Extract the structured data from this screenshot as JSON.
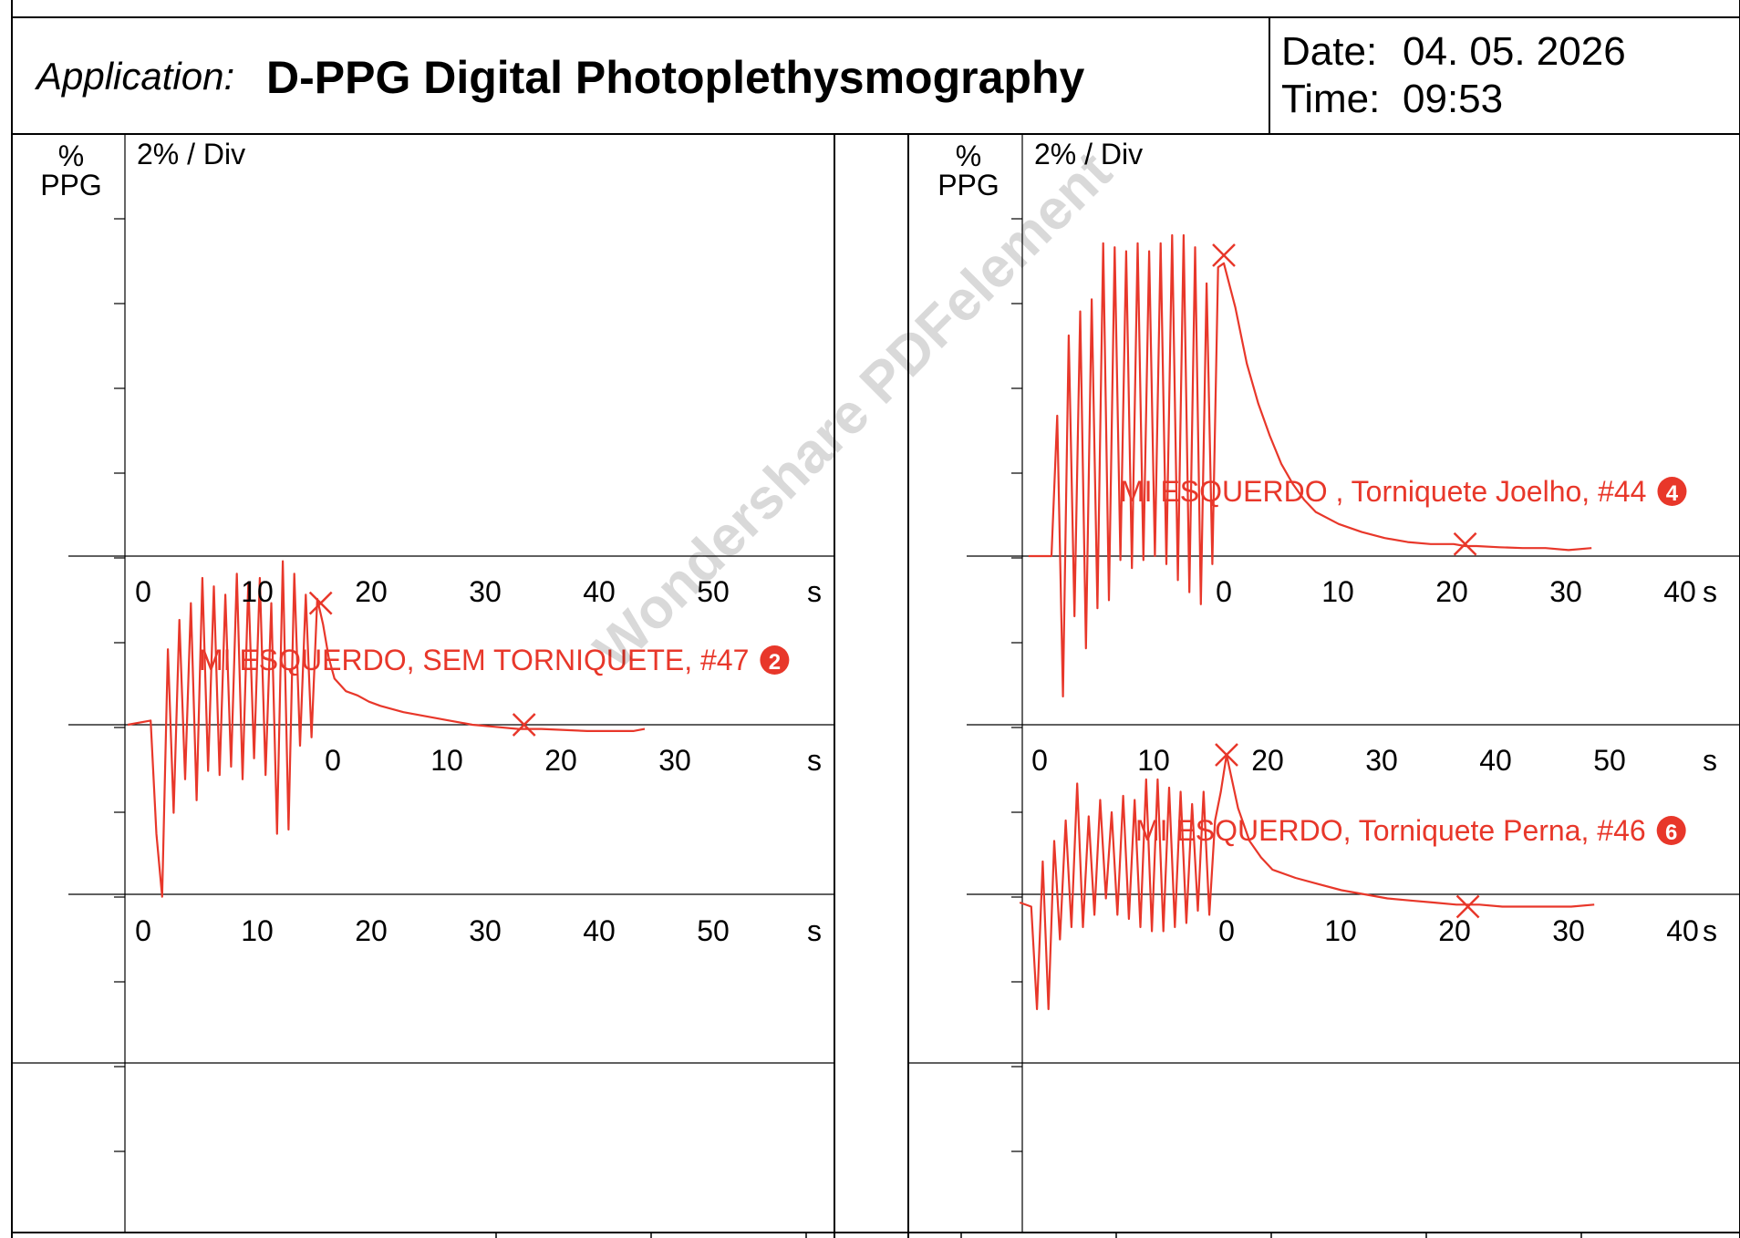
{
  "header": {
    "application_label": "Application:",
    "application_name": "D-PPG Digital Photoplethysmography",
    "date_label": "Date:",
    "date_value": "04. 05. 2026",
    "time_label": "Time:",
    "time_value": "09:53"
  },
  "watermark": "Wondershare PDFelement",
  "colors": {
    "trace": "#e8372a",
    "grid": "#000000"
  },
  "panels": {
    "left": {
      "y_unit_top": "%",
      "y_unit_bottom": "PPG",
      "scale_label": "2% / Div"
    },
    "right": {
      "y_unit_top": "%",
      "y_unit_bottom": "PPG",
      "scale_label": "2% / Div"
    }
  },
  "chart_data": [
    {
      "type": "line",
      "panel": "left",
      "label": "MI ESQUERDO, SEM TORNIQUETE, #47",
      "badge": "2",
      "x_unit": "s",
      "axis_row_ticks": [
        [
          "0",
          "10",
          "20",
          "30",
          "40",
          "50"
        ],
        [
          "0",
          "10",
          "20",
          "30",
          "40",
          "50"
        ]
      ],
      "secondary_axis_ticks": [
        "0",
        "10",
        "20",
        "30"
      ],
      "x": [
        0,
        2,
        2.5,
        3,
        3.5,
        4,
        4.5,
        5,
        5.5,
        6,
        6.5,
        7,
        7.5,
        8,
        8.5,
        9,
        9.5,
        10,
        10.5,
        11,
        11.5,
        12,
        12.5,
        13,
        13.5,
        14,
        14.5,
        15,
        15.5,
        16,
        16.5,
        17,
        17.5,
        18,
        19,
        20,
        21,
        22,
        24,
        26,
        28,
        30,
        32,
        34,
        36,
        40,
        44,
        45
      ],
      "y": [
        0,
        0.1,
        -2.6,
        -4.1,
        1.8,
        -2.1,
        2.5,
        -1.3,
        2.9,
        -1.8,
        3.5,
        -1.1,
        3.3,
        -1.2,
        3.1,
        -1.0,
        3.6,
        -1.3,
        3.4,
        -0.8,
        3.5,
        -1.2,
        2.9,
        -2.6,
        3.9,
        -2.5,
        3.6,
        -0.5,
        3.1,
        -0.3,
        3.0,
        2.4,
        1.6,
        1.1,
        0.8,
        0.7,
        0.55,
        0.45,
        0.3,
        0.2,
        0.1,
        0,
        -0.05,
        -0.1,
        -0.1,
        -0.15,
        -0.15,
        -0.1
      ],
      "markers": [
        {
          "x": 16.8,
          "y": 2.9
        },
        {
          "x": 34.5,
          "y": 0
        }
      ],
      "y_scale": "2% / Div"
    },
    {
      "type": "line",
      "panel": "right-top",
      "label": "MI ESQUERDO , Torniquete Joelho, #44",
      "badge": "4",
      "x_unit": "s",
      "axis_ticks": [
        "0",
        "10",
        "20",
        "30",
        "40"
      ],
      "x": [
        -17,
        -15,
        -14.5,
        -14,
        -13.5,
        -13,
        -12.5,
        -12,
        -11.5,
        -11,
        -10.5,
        -10,
        -9.5,
        -9,
        -8.5,
        -8,
        -7.5,
        -7,
        -6.5,
        -6,
        -5.5,
        -5,
        -4.5,
        -4,
        -3.5,
        -3,
        -2.5,
        -2,
        -1.5,
        -1,
        -0.5,
        0,
        1,
        2,
        3,
        4,
        5,
        6,
        7,
        8,
        10,
        12,
        14,
        16,
        18,
        20,
        21,
        22,
        24,
        26,
        28,
        30,
        32
      ],
      "y": [
        0,
        0,
        3.5,
        -3.5,
        5.5,
        -1.5,
        6.1,
        -2.3,
        6.4,
        -1.3,
        7.8,
        -1.1,
        7.7,
        -0.1,
        7.6,
        -0.3,
        7.8,
        -0.1,
        7.6,
        0,
        7.8,
        -0.2,
        8.0,
        -0.6,
        8.0,
        -0.9,
        7.7,
        -1.2,
        6.8,
        -0.2,
        7.2,
        7.3,
        6.2,
        4.8,
        3.8,
        3.0,
        2.3,
        1.8,
        1.4,
        1.1,
        0.8,
        0.6,
        0.45,
        0.35,
        0.3,
        0.3,
        0.25,
        0.25,
        0.22,
        0.2,
        0.2,
        0.15,
        0.2
      ],
      "markers": [
        {
          "x": 0,
          "y": 7.5
        },
        {
          "x": 21,
          "y": 0.3
        }
      ],
      "y_scale": "2% / Div"
    },
    {
      "type": "line",
      "panel": "right-bottom",
      "label": "MI ESQUERDO, Torniquete Perna, #46",
      "badge": "6",
      "x_unit": "s",
      "axis_ticks": [
        "0",
        "10",
        "20",
        "30",
        "40"
      ],
      "secondary_axis_ticks": [
        "0",
        "10",
        "20",
        "30",
        "40",
        "50"
      ],
      "x": [
        -18,
        -17,
        -16.5,
        -16,
        -15.5,
        -15,
        -14.5,
        -14,
        -13.5,
        -13,
        -12.5,
        -12,
        -11.5,
        -11,
        -10.5,
        -10,
        -9.5,
        -9,
        -8.5,
        -8,
        -7.5,
        -7,
        -6.5,
        -6,
        -5.5,
        -5,
        -4.5,
        -4,
        -3.5,
        -3,
        -2.5,
        -2,
        -1.5,
        -1,
        -0.5,
        0,
        1,
        2,
        3,
        4,
        6,
        8,
        10,
        12,
        14,
        16,
        18,
        20,
        22,
        24,
        26,
        28,
        30,
        32
      ],
      "y": [
        0,
        -0.1,
        -2.6,
        1.0,
        -2.6,
        1.5,
        -0.9,
        2.0,
        -0.6,
        2.9,
        -0.6,
        2.1,
        -0.3,
        2.5,
        0.1,
        2.2,
        -0.3,
        2.6,
        -0.4,
        2.5,
        -0.6,
        3.0,
        -0.7,
        3.0,
        -0.7,
        2.8,
        -0.6,
        2.7,
        -0.5,
        2.4,
        -0.2,
        2.7,
        -0.3,
        2.0,
        2.7,
        3.6,
        2.3,
        1.5,
        1.1,
        0.8,
        0.6,
        0.45,
        0.3,
        0.2,
        0.1,
        0.05,
        0,
        -0.05,
        -0.05,
        -0.1,
        -0.1,
        -0.1,
        -0.1,
        -0.05
      ],
      "markers": [
        {
          "x": 0,
          "y": 3.6
        },
        {
          "x": 21,
          "y": -0.1
        }
      ],
      "y_scale": "2% / Div"
    }
  ]
}
